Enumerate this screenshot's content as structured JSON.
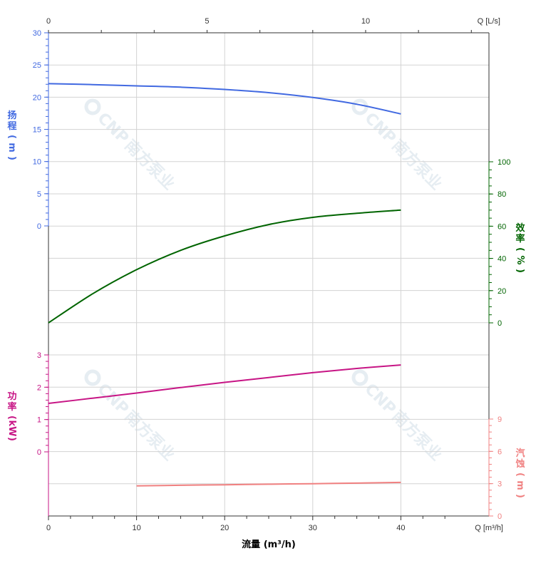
{
  "colors": {
    "head": "#4169e1",
    "efficiency": "#006400",
    "power": "#c71585",
    "npsh": "#f08080",
    "axis": "#333333",
    "grid": "#d3d3d3",
    "watermark": "#e6edf2"
  },
  "chart_data": {
    "type": "line",
    "x_bottom": {
      "label": "流量 (m³/h)",
      "unit_label": "Q [m³/h]",
      "range": [
        0,
        50
      ],
      "ticks": [
        0,
        10,
        20,
        30,
        40
      ]
    },
    "x_top": {
      "unit_label": "Q [L/s]",
      "range": [
        0,
        13.889
      ],
      "ticks": [
        0,
        5,
        10
      ]
    },
    "axes": {
      "head": {
        "label_chars": [
          "扬",
          "程",
          "(",
          "m",
          ")"
        ],
        "range": [
          -15,
          30
        ],
        "ticks": [
          0,
          5,
          10,
          15,
          20,
          25,
          30
        ]
      },
      "efficiency": {
        "label_chars": [
          "效",
          "率",
          "(",
          "%",
          ")"
        ],
        "range": [
          0,
          100
        ],
        "ticks": [
          0,
          20,
          40,
          60,
          80,
          100
        ]
      },
      "power": {
        "label_chars": [
          "功",
          "率",
          "(",
          "kW",
          ")"
        ],
        "range": [
          -2,
          3.3
        ],
        "ticks": [
          0,
          1,
          2,
          3
        ]
      },
      "npsh": {
        "label_chars": [
          "汽",
          "蚀",
          "(",
          "m",
          ")"
        ],
        "range": [
          0,
          9
        ],
        "ticks": [
          0,
          3,
          6,
          9
        ]
      }
    },
    "series": [
      {
        "key": "head",
        "x": [
          0,
          5,
          10,
          15,
          20,
          25,
          30,
          35,
          40
        ],
        "y": [
          22.1,
          21.95,
          21.75,
          21.55,
          21.2,
          20.7,
          19.95,
          18.9,
          17.4
        ]
      },
      {
        "key": "efficiency",
        "x": [
          0,
          5,
          10,
          15,
          20,
          25,
          30,
          35,
          40
        ],
        "y": [
          0,
          18,
          33,
          45,
          54,
          61,
          65.5,
          68,
          70
        ]
      },
      {
        "key": "power",
        "x": [
          0,
          5,
          10,
          15,
          20,
          25,
          30,
          35,
          40
        ],
        "y": [
          1.5,
          1.66,
          1.82,
          1.99,
          2.15,
          2.3,
          2.45,
          2.58,
          2.69
        ]
      },
      {
        "key": "npsh",
        "x": [
          10,
          15,
          20,
          25,
          30,
          35,
          40
        ],
        "y": [
          2.8,
          2.85,
          2.9,
          2.95,
          3.0,
          3.05,
          3.12
        ]
      }
    ],
    "grid": true
  },
  "watermark_text": {
    "logo": "CNP",
    "company": "南方泵业"
  }
}
